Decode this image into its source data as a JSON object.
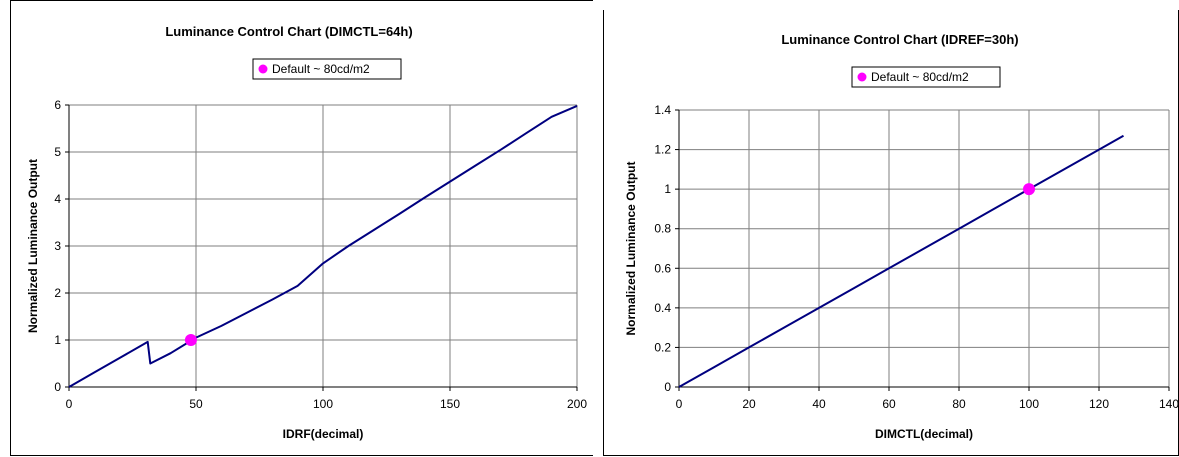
{
  "colors": {
    "line": "#000080",
    "marker": "#ff00ff",
    "grid": "#7f7f7f",
    "axis": "#000000"
  },
  "chart_data": [
    {
      "type": "line",
      "title": "Luminance Control Chart (DIMCTL=64h)",
      "xlabel": "IDRF(decimal)",
      "ylabel": "Normalized Luminance Output",
      "xlim": [
        0,
        200
      ],
      "ylim": [
        0,
        6
      ],
      "xticks": [
        0,
        50,
        100,
        150,
        200
      ],
      "yticks": [
        0,
        1,
        2,
        3,
        4,
        5,
        6
      ],
      "grid": true,
      "legend": {
        "position": "top-center",
        "entries": [
          "Default ~ 80cd/m2"
        ]
      },
      "series": [
        {
          "values": [
            [
              0,
              0
            ],
            [
              10,
              0.31
            ],
            [
              20,
              0.62
            ],
            [
              31,
              0.96
            ],
            [
              32,
              0.5
            ],
            [
              40,
              0.72
            ],
            [
              50,
              1.05
            ],
            [
              60,
              1.3
            ],
            [
              70,
              1.58
            ],
            [
              80,
              1.86
            ],
            [
              90,
              2.15
            ],
            [
              100,
              2.63
            ],
            [
              110,
              3.0
            ],
            [
              120,
              3.34
            ],
            [
              130,
              3.68
            ],
            [
              140,
              4.03
            ],
            [
              150,
              4.37
            ],
            [
              160,
              4.71
            ],
            [
              170,
              5.05
            ],
            [
              180,
              5.4
            ],
            [
              190,
              5.75
            ],
            [
              200,
              5.98
            ]
          ]
        }
      ],
      "markers": [
        {
          "name": "Default ~ 80cd/m2",
          "x": 48,
          "y": 1.0
        }
      ]
    },
    {
      "type": "line",
      "title": "Luminance Control Chart (IDREF=30h)",
      "xlabel": "DIMCTL(decimal)",
      "ylabel": "Normalized Luminance Output",
      "xlim": [
        0,
        140
      ],
      "ylim": [
        0,
        1.4
      ],
      "xticks": [
        0,
        20,
        40,
        60,
        80,
        100,
        120,
        140
      ],
      "yticks": [
        "0",
        "0.2",
        "0.4",
        "0.6",
        "0.8",
        "1",
        "1.2",
        "1.4"
      ],
      "grid": true,
      "legend": {
        "position": "top-center",
        "entries": [
          "Default ~ 80cd/m2"
        ]
      },
      "series": [
        {
          "values": [
            [
              0,
              0
            ],
            [
              10,
              0.1
            ],
            [
              20,
              0.2
            ],
            [
              30,
              0.3
            ],
            [
              40,
              0.4
            ],
            [
              50,
              0.5
            ],
            [
              60,
              0.6
            ],
            [
              70,
              0.7
            ],
            [
              80,
              0.8
            ],
            [
              90,
              0.9
            ],
            [
              100,
              1.0
            ],
            [
              110,
              1.1
            ],
            [
              120,
              1.2
            ],
            [
              127,
              1.27
            ]
          ]
        }
      ],
      "markers": [
        {
          "name": "Default ~ 80cd/m2",
          "x": 100,
          "y": 1.0
        }
      ]
    }
  ]
}
